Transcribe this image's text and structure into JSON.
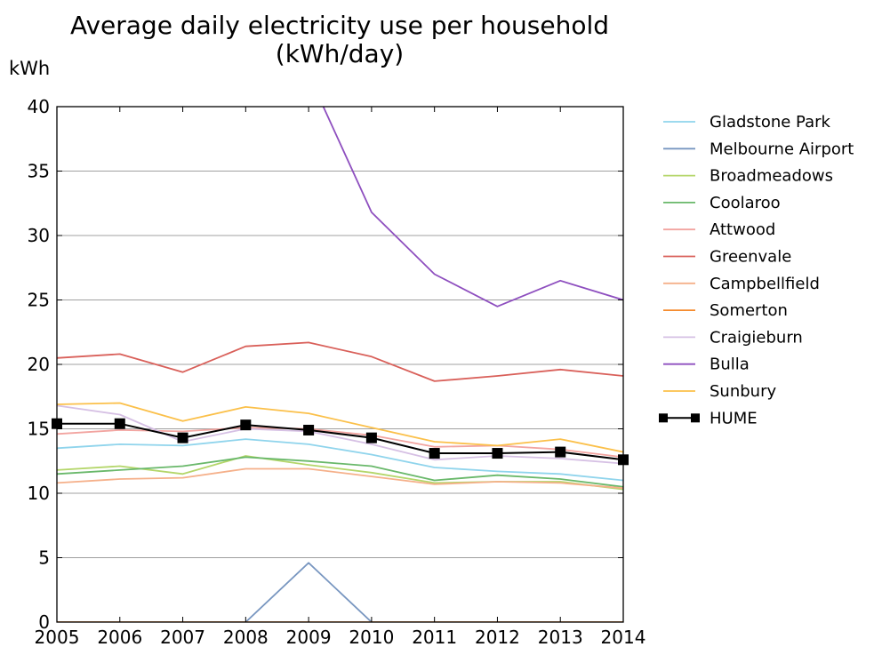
{
  "chart_data": {
    "type": "line",
    "title": "Average daily electricity use per household",
    "subtitle": "(kWh/day)",
    "ylabel": "kWh",
    "xlabel": "",
    "x": [
      2005,
      2006,
      2007,
      2008,
      2009,
      2010,
      2011,
      2012,
      2013,
      2014
    ],
    "xlim": [
      2005,
      2014
    ],
    "ylim": [
      0,
      40
    ],
    "yticks": [
      0,
      5,
      10,
      15,
      20,
      25,
      30,
      35,
      40
    ],
    "grid": "horizontal",
    "legend_position": "right",
    "series": [
      {
        "name": "Gladstone Park",
        "color": "#8fd4ec",
        "values": [
          13.5,
          13.8,
          13.7,
          14.2,
          13.8,
          13.0,
          12.0,
          11.7,
          11.5,
          11.0
        ]
      },
      {
        "name": "Melbourne Airport",
        "color": "#7896c0",
        "values": [
          0,
          0,
          0,
          0,
          4.6,
          0,
          0,
          0,
          0,
          0
        ]
      },
      {
        "name": "Broadmeadows",
        "color": "#b4d66a",
        "values": [
          11.8,
          12.1,
          11.5,
          12.9,
          12.2,
          11.6,
          10.8,
          10.9,
          10.9,
          10.3
        ]
      },
      {
        "name": "Coolaroo",
        "color": "#69b86a",
        "values": [
          11.5,
          11.8,
          12.1,
          12.8,
          12.5,
          12.1,
          11.0,
          11.4,
          11.1,
          10.5
        ]
      },
      {
        "name": "Attwood",
        "color": "#f2a4a0",
        "values": [
          14.6,
          14.9,
          14.8,
          15.1,
          15.0,
          14.5,
          13.6,
          13.7,
          13.4,
          12.8
        ]
      },
      {
        "name": "Greenvale",
        "color": "#d9605a",
        "values": [
          20.5,
          20.8,
          19.4,
          21.4,
          21.7,
          20.6,
          18.7,
          19.1,
          19.6,
          19.1
        ]
      },
      {
        "name": "Campbellfield",
        "color": "#f5b08a",
        "values": [
          10.8,
          11.1,
          11.2,
          11.9,
          11.9,
          11.3,
          10.7,
          10.9,
          10.8,
          10.4
        ]
      },
      {
        "name": "Somerton",
        "color": "#f58a2c",
        "values": [
          0,
          0,
          0,
          0,
          0,
          0,
          0,
          0,
          0,
          0
        ]
      },
      {
        "name": "Craigieburn",
        "color": "#d6c0e4",
        "values": [
          16.8,
          16.1,
          14.0,
          15.0,
          14.8,
          13.8,
          12.6,
          12.9,
          12.7,
          12.3
        ]
      },
      {
        "name": "Bulla",
        "color": "#8e4fbf",
        "values": [
          null,
          null,
          null,
          null,
          42.5,
          31.8,
          27.0,
          24.5,
          26.5,
          25.0
        ]
      },
      {
        "name": "Sunbury",
        "color": "#fbc04a",
        "values": [
          16.9,
          17.0,
          15.6,
          16.7,
          16.2,
          15.1,
          14.0,
          13.7,
          14.2,
          13.2
        ]
      },
      {
        "name": "HUME",
        "color": "#000000",
        "marker": "square",
        "values": [
          15.4,
          15.4,
          14.3,
          15.3,
          14.9,
          14.3,
          13.1,
          13.1,
          13.2,
          12.6
        ]
      }
    ]
  }
}
